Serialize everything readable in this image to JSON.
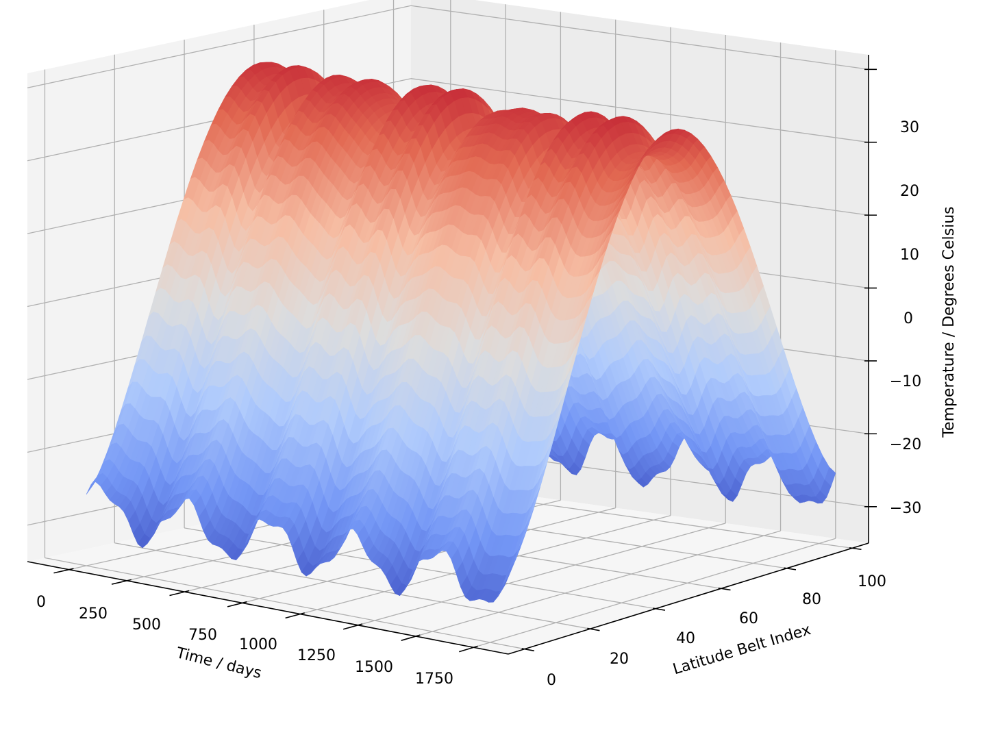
{
  "chart_data": {
    "type": "surface3d",
    "title": "",
    "colormap": "coolwarm",
    "colormap_stops": [
      "#3b4cc0",
      "#7396f5",
      "#b0cbfc",
      "#dddddd",
      "#f6bea4",
      "#e26952",
      "#b40426"
    ],
    "xlabel": "Time / days",
    "ylabel": "Latitude Belt Index",
    "zlabel": "Temperature / Degrees Celsius",
    "xlim": [
      -180,
      1900
    ],
    "ylim": [
      -5,
      105
    ],
    "zlim": [
      -35,
      32
    ],
    "xticks": [
      0,
      250,
      500,
      750,
      1000,
      1250,
      1500,
      1750
    ],
    "xtick_labels": [
      "0",
      "250",
      "500",
      "750",
      "1000",
      "1250",
      "1500",
      "1750"
    ],
    "yticks": [
      0,
      20,
      40,
      60,
      80,
      100
    ],
    "ytick_labels": [
      "0",
      "20",
      "40",
      "60",
      "80",
      "100"
    ],
    "zticks": [
      -30,
      -20,
      -10,
      0,
      10,
      20,
      30
    ],
    "ztick_labels": [
      "−30",
      "−20",
      "−10",
      "0",
      "10",
      "20",
      "30"
    ],
    "grid": true,
    "time_range_days": [
      0,
      1825
    ],
    "latitude_belt_range": [
      0,
      100
    ],
    "model": {
      "pole_temperature": -27,
      "equator_temperature": 27,
      "seasonal_period_days": 365,
      "seasonal_amplitude": 3.2
    }
  }
}
